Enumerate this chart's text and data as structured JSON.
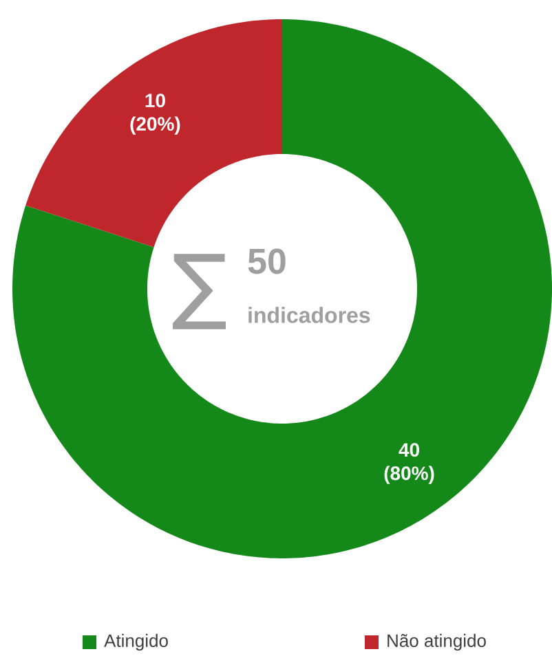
{
  "chart_data": {
    "type": "donut",
    "categories": [
      "Atingido",
      "Não atingido"
    ],
    "values": [
      40,
      10
    ],
    "colors": [
      "#14891a",
      "#c0272d"
    ],
    "value_labels": [
      "40 (80%)",
      "10 (20%)"
    ],
    "annotations": [
      "∑",
      "50",
      "indicadores"
    ],
    "legend": "bottom"
  }
}
